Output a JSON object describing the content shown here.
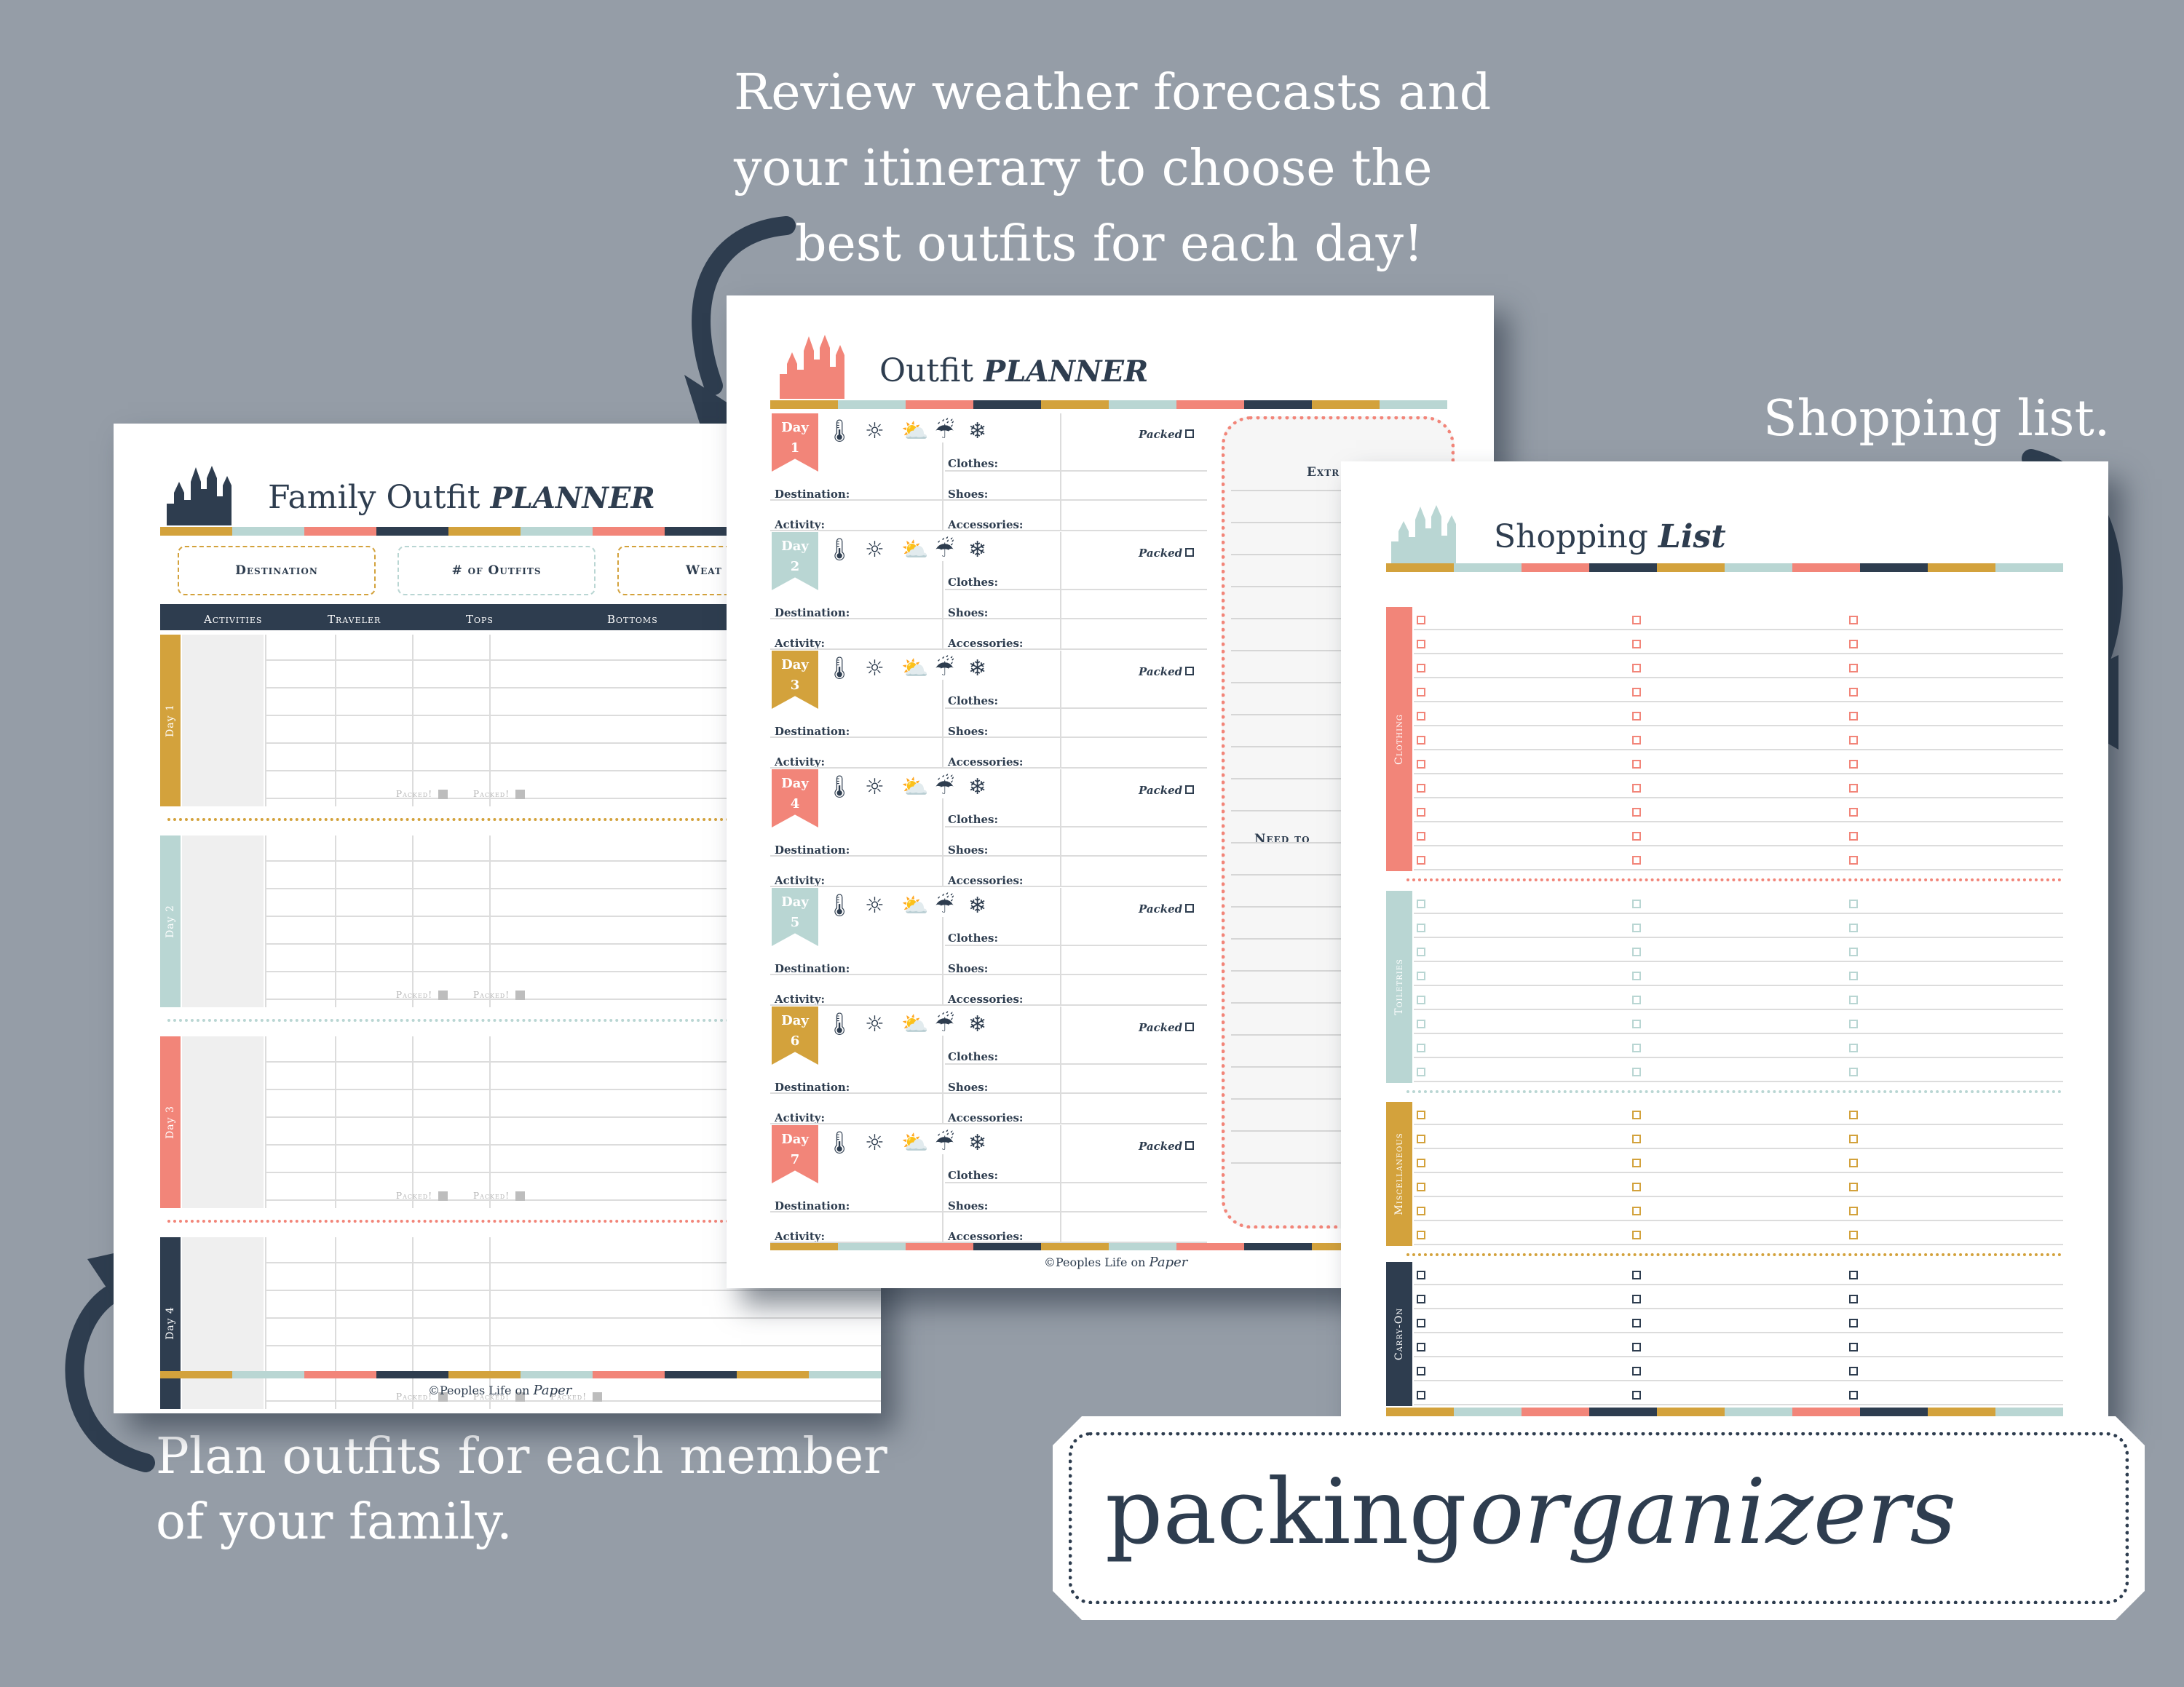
{
  "captions": {
    "weather": [
      "Review weather forecasts and",
      "your itinerary to choose the",
      "best outfits for each day!"
    ],
    "shopping": "Shopping list.",
    "family": [
      "Plan outfits for each  member",
      "of your family."
    ]
  },
  "colors": {
    "coral": "#f28579",
    "mint": "#b9d6d3",
    "gold": "#d3a23c",
    "navy": "#2e3d4f",
    "background": "#959da7"
  },
  "family_planner": {
    "title_main": "Family Outfit",
    "title_script": "Planner",
    "fields": [
      "Destination",
      "# of Outfits",
      "Weat"
    ],
    "columns": [
      "Activities",
      "Traveler",
      "Tops",
      "Bottoms"
    ],
    "days": [
      "Day 1",
      "Day 2",
      "Day 3",
      "Day 4"
    ],
    "packed_label": "Packed!",
    "footer_main": "©Peoples Life on",
    "footer_script": "Paper"
  },
  "outfit_planner": {
    "title_main": "Outfit",
    "title_script": "Planner",
    "day_word": "Day",
    "day_numbers": [
      "1",
      "2",
      "3",
      "4",
      "5",
      "6",
      "7"
    ],
    "labels": {
      "packed": "Packed",
      "clothes": "Clothes:",
      "shoes": "Shoes:",
      "accessories": "Accessories:",
      "destination": "Destination:",
      "activity": "Activity:"
    },
    "side_labels": [
      "Extr",
      "Need to"
    ],
    "weather_icons": [
      "thermometer-icon",
      "sun-icon",
      "cloud-sun-icon",
      "rain-cloud-icon",
      "snowflake-icon"
    ],
    "footer_main": "©Peoples Life on",
    "footer_script": "Paper"
  },
  "shopping_list": {
    "title_main": "Shopping",
    "title_script": "List",
    "sections": [
      "Clothing",
      "Toiletries",
      "Miscellaneous",
      "Carry-On"
    ]
  },
  "banner": {
    "word1": "packing",
    "word2": "organizers"
  }
}
